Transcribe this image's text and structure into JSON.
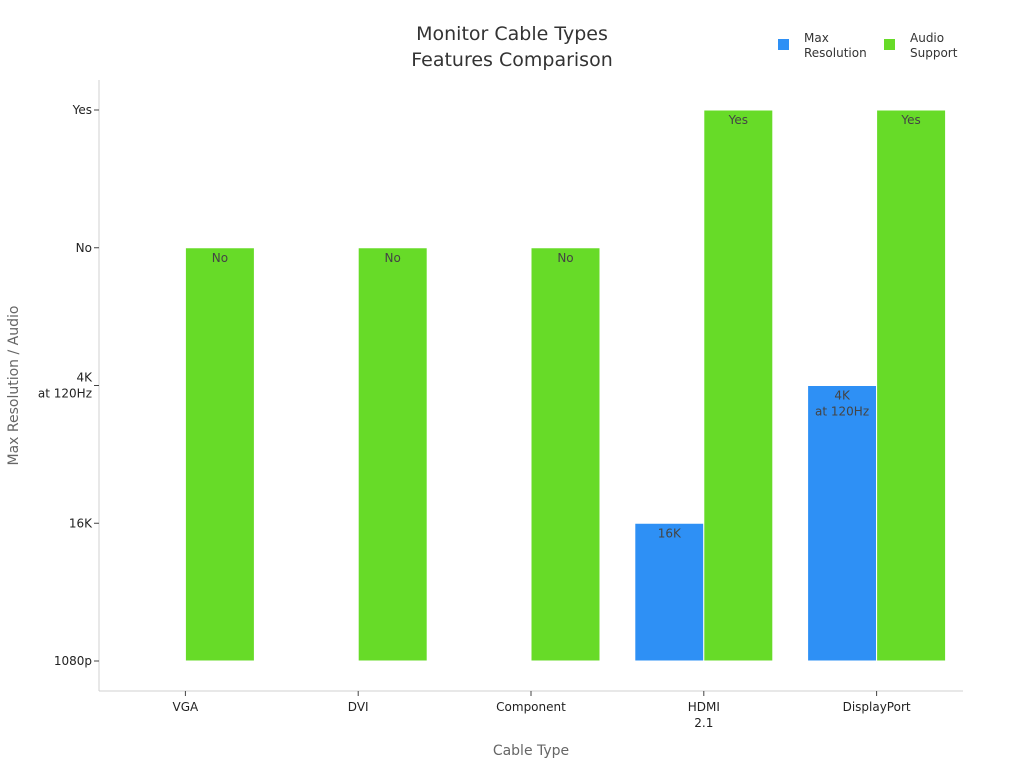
{
  "chart_data": {
    "type": "bar",
    "title": [
      "Monitor Cable Types",
      "Features Comparison"
    ],
    "xlabel": "Cable Type",
    "ylabel": "Max Resolution / Audio",
    "categories": [
      [
        "VGA"
      ],
      [
        "DVI"
      ],
      [
        "Component"
      ],
      [
        "HDMI",
        "2.1"
      ],
      [
        "DisplayPort"
      ]
    ],
    "y_ticks": [
      [
        "1080p"
      ],
      [
        "16K"
      ],
      [
        "4K",
        "at 120Hz"
      ],
      [
        "No"
      ],
      [
        "Yes"
      ]
    ],
    "ylim": [
      0,
      4
    ],
    "legend_position": "top-right",
    "grid": false,
    "series": [
      {
        "name": [
          "Max",
          "Resolution"
        ],
        "color": "#2e90f5",
        "values": [
          null,
          null,
          null,
          1,
          2
        ],
        "labels": [
          null,
          null,
          null,
          [
            "16K"
          ],
          [
            "4K",
            "at 120Hz"
          ]
        ]
      },
      {
        "name": [
          "Audio",
          "Support"
        ],
        "color": "#67db28",
        "values": [
          3,
          3,
          3,
          4,
          4
        ],
        "labels": [
          [
            "No"
          ],
          [
            "No"
          ],
          [
            "No"
          ],
          [
            "Yes"
          ],
          [
            "Yes"
          ]
        ]
      }
    ]
  }
}
